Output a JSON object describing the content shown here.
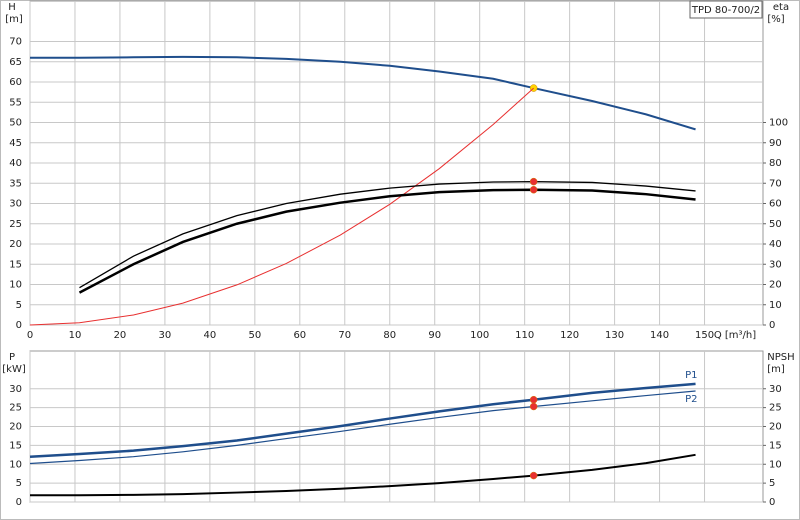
{
  "chart_data": [
    {
      "type": "line",
      "y_label": "H",
      "y_unit": "[m]",
      "y2_label": "eta",
      "y2_unit": "[%]",
      "x_label": "Q [m³/h]",
      "label_box": "TPD 80-700/2",
      "x": [
        0,
        11,
        23,
        34,
        46,
        57,
        69,
        80,
        91,
        103,
        112,
        125,
        137,
        148
      ],
      "xlim": [
        0,
        163
      ],
      "xticks": [
        0,
        10,
        20,
        30,
        40,
        50,
        60,
        70,
        80,
        90,
        100,
        110,
        120,
        130,
        140,
        150
      ],
      "ylim": [
        0,
        80
      ],
      "yticks": [
        0,
        5,
        10,
        15,
        20,
        25,
        30,
        35,
        40,
        45,
        50,
        55,
        60,
        65,
        70
      ],
      "y2lim": [
        0,
        160
      ],
      "y2ticks": [
        0,
        10,
        20,
        30,
        40,
        50,
        60,
        70,
        80,
        90,
        100
      ],
      "grid": true,
      "show_xtick_labels": true,
      "series": [
        {
          "color": "#1f4e8c",
          "width": 2,
          "values": [
            66,
            66,
            66.1,
            66.2,
            66.1,
            65.7,
            65,
            64,
            62.6,
            60.8,
            58.5,
            55.3,
            52,
            48.3
          ],
          "markers": [
            10
          ],
          "marker_color": "#ffd400"
        },
        {
          "color": "#e83030",
          "width": 1,
          "values": [
            0,
            0.56,
            2.47,
            5.4,
            9.9,
            15.2,
            22.2,
            29.8,
            38.6,
            49.5,
            58.5,
            null,
            null,
            null
          ]
        },
        {
          "color": "#000000",
          "width": 1.3,
          "axis": "y2",
          "values": [
            null,
            18.4,
            34,
            45,
            54,
            60,
            64.6,
            67.6,
            69.6,
            70.6,
            70.8,
            70.4,
            68.6,
            66.2
          ],
          "markers": [
            10
          ],
          "marker_color": "#e83030"
        },
        {
          "color": "#000000",
          "width": 2.5,
          "axis": "y2",
          "values": [
            null,
            16,
            30,
            41,
            50,
            56,
            60.4,
            63.6,
            65.6,
            66.6,
            66.8,
            66.4,
            64.6,
            62
          ],
          "markers": [
            10
          ],
          "marker_color": "#e83030"
        }
      ]
    },
    {
      "type": "line",
      "y_label": "P",
      "y_unit": "[kW]",
      "y2_label": "NPSH",
      "y2_unit": "[m]",
      "x": [
        0,
        11,
        23,
        34,
        46,
        57,
        69,
        80,
        91,
        103,
        112,
        125,
        137,
        148
      ],
      "xlim": [
        0,
        163
      ],
      "xticks": [
        0,
        10,
        20,
        30,
        40,
        50,
        60,
        70,
        80,
        90,
        100,
        110,
        120,
        130,
        140,
        150
      ],
      "ylim": [
        0,
        40
      ],
      "yticks": [
        0,
        5,
        10,
        15,
        20,
        25,
        30
      ],
      "y2lim": [
        0,
        40
      ],
      "y2ticks": [
        0,
        5,
        10,
        15,
        20,
        25,
        30
      ],
      "grid": true,
      "show_xtick_labels": false,
      "series": [
        {
          "name": "P1",
          "color": "#1f4e8c",
          "width": 2.5,
          "values": [
            12,
            12.7,
            13.6,
            14.8,
            16.3,
            18.1,
            20.1,
            22.1,
            24,
            25.9,
            27.1,
            28.9,
            30.2,
            31.3
          ],
          "markers": [
            10
          ],
          "marker_color": "#e83030"
        },
        {
          "name": "P2",
          "color": "#1f4e8c",
          "width": 1.2,
          "values": [
            10.2,
            11,
            12,
            13.3,
            15,
            16.8,
            18.7,
            20.6,
            22.4,
            24.2,
            25.3,
            26.8,
            28.2,
            29.4
          ],
          "markers": [
            10
          ],
          "marker_color": "#e83030"
        },
        {
          "color": "#000000",
          "width": 2,
          "axis": "y2",
          "values": [
            1.8,
            1.8,
            1.9,
            2.1,
            2.5,
            2.9,
            3.5,
            4.2,
            5,
            6.1,
            7,
            8.5,
            10.3,
            12.5
          ],
          "markers": [
            10
          ],
          "marker_color": "#e83030"
        }
      ]
    }
  ]
}
